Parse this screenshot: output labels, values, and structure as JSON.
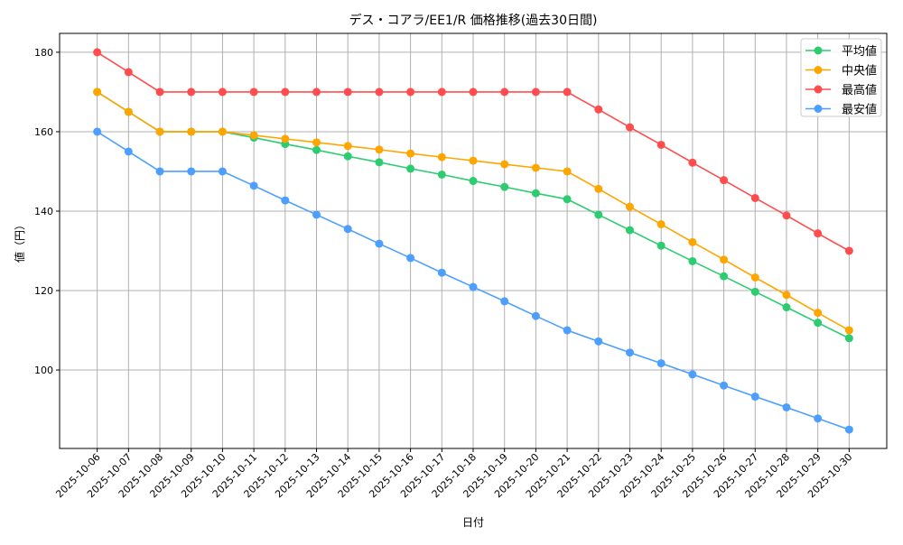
{
  "chart_data": {
    "type": "line",
    "title": "デス・コアラ/EE1/R 価格推移(過去30日間)",
    "xlabel": "日付",
    "ylabel": "値（円）",
    "ylim": [
      80.25,
      184.75
    ],
    "yticks": [
      100,
      120,
      140,
      160,
      180
    ],
    "grid": true,
    "legend_position": "top-right",
    "x": [
      "2025-10-06",
      "2025-10-07",
      "2025-10-08",
      "2025-10-09",
      "2025-10-10",
      "2025-10-11",
      "2025-10-12",
      "2025-10-13",
      "2025-10-14",
      "2025-10-15",
      "2025-10-16",
      "2025-10-17",
      "2025-10-18",
      "2025-10-19",
      "2025-10-20",
      "2025-10-21",
      "2025-10-22",
      "2025-10-23",
      "2025-10-24",
      "2025-10-25",
      "2025-10-26",
      "2025-10-27",
      "2025-10-28",
      "2025-10-29",
      "2025-10-30"
    ],
    "series": [
      {
        "name": "平均値",
        "color": "#2ecc71",
        "values": [
          170,
          165,
          160,
          160,
          160,
          158.5,
          156.9,
          155.4,
          153.8,
          152.3,
          150.7,
          149.2,
          147.6,
          146.1,
          144.5,
          143,
          139.1,
          135.2,
          131.3,
          127.4,
          123.6,
          119.7,
          115.8,
          111.9,
          108
        ]
      },
      {
        "name": "中央値",
        "color": "#ffa500",
        "values": [
          170,
          165,
          160,
          160,
          160,
          159.1,
          158.2,
          157.3,
          156.4,
          155.5,
          154.5,
          153.6,
          152.7,
          151.8,
          150.9,
          150,
          145.6,
          141.1,
          136.7,
          132.2,
          127.8,
          123.3,
          118.9,
          114.4,
          110
        ]
      },
      {
        "name": "最高値",
        "color": "#ff4d4d",
        "values": [
          180,
          175,
          170,
          170,
          170,
          170,
          170,
          170,
          170,
          170,
          170,
          170,
          170,
          170,
          170,
          170,
          165.6,
          161.1,
          156.7,
          152.2,
          147.8,
          143.3,
          138.9,
          134.4,
          130
        ]
      },
      {
        "name": "最安値",
        "color": "#4d9fff",
        "values": [
          160,
          155,
          150,
          150,
          150,
          146.4,
          142.7,
          139.1,
          135.5,
          131.8,
          128.2,
          124.5,
          120.9,
          117.3,
          113.6,
          110,
          107.2,
          104.4,
          101.7,
          98.9,
          96.1,
          93.3,
          90.6,
          87.8,
          85
        ]
      }
    ]
  }
}
